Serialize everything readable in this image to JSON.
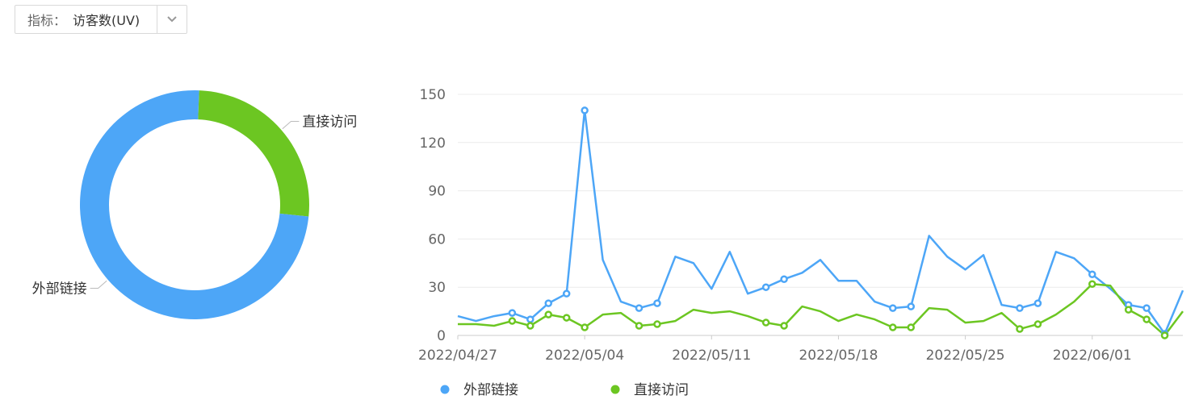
{
  "selector": {
    "label": "指标：",
    "value": "访客数(UV)",
    "icon": "chevron-down-icon"
  },
  "colors": {
    "blue": "#4da6f7",
    "green": "#6cc622",
    "grid": "#ececec",
    "axis_text": "#666666"
  },
  "chart_data": [
    {
      "type": "pie",
      "style": "donut",
      "slices": [
        {
          "name": "直接访问",
          "value": 26,
          "color": "#6cc622"
        },
        {
          "name": "外部链接",
          "value": 74,
          "color": "#4da6f7"
        }
      ]
    },
    {
      "type": "line",
      "ylim": [
        0,
        150
      ],
      "yticks": [
        0,
        30,
        60,
        90,
        120,
        150
      ],
      "x_tick_labels": [
        "2022/04/27",
        "2022/05/04",
        "2022/05/11",
        "2022/05/18",
        "2022/05/25",
        "2022/06/01"
      ],
      "x_tick_index": [
        0,
        7,
        14,
        21,
        28,
        35
      ],
      "legend": [
        {
          "name": "外部链接",
          "color": "#4da6f7"
        },
        {
          "name": "直接访问",
          "color": "#6cc622"
        }
      ],
      "series": [
        {
          "name": "外部链接",
          "color": "#4da6f7",
          "values": [
            12,
            9,
            12,
            14,
            10,
            20,
            26,
            140,
            47,
            21,
            17,
            20,
            49,
            45,
            29,
            52,
            26,
            30,
            35,
            39,
            47,
            34,
            34,
            21,
            17,
            18,
            62,
            49,
            41,
            50,
            19,
            17,
            20,
            52,
            48,
            38,
            29,
            19,
            17,
            1,
            28
          ],
          "markers": [
            3,
            4,
            5,
            6,
            7,
            10,
            11,
            17,
            18,
            24,
            25,
            31,
            32,
            35,
            37,
            38,
            39
          ]
        },
        {
          "name": "直接访问",
          "color": "#6cc622",
          "values": [
            7,
            7,
            6,
            9,
            6,
            13,
            11,
            5,
            13,
            14,
            6,
            7,
            9,
            16,
            14,
            15,
            12,
            8,
            6,
            18,
            15,
            9,
            13,
            10,
            5,
            5,
            17,
            16,
            8,
            9,
            14,
            4,
            7,
            13,
            21,
            32,
            31,
            16,
            10,
            0,
            15
          ],
          "markers": [
            3,
            4,
            5,
            6,
            7,
            10,
            11,
            17,
            18,
            24,
            25,
            31,
            32,
            35,
            37,
            38,
            39
          ]
        }
      ]
    }
  ]
}
